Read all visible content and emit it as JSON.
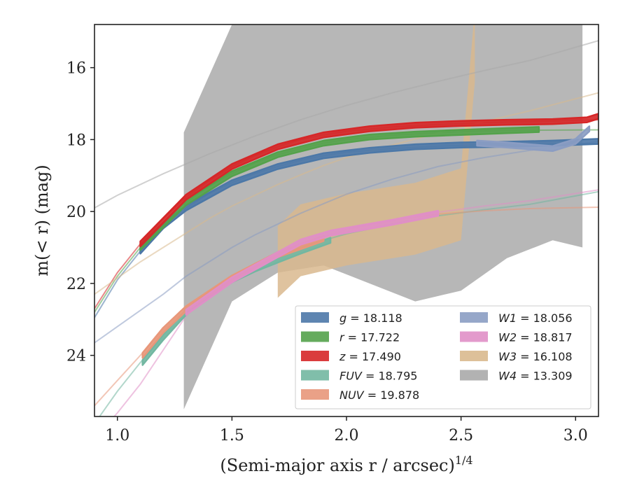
{
  "chart_data": {
    "type": "line",
    "xlabel": "(Semi-major axis r / arcsec)",
    "xlabel_exp": "1/4",
    "ylabel": "m(< r) (mag)",
    "xlim": [
      0.9,
      3.1
    ],
    "ylim": [
      25.7,
      14.8
    ],
    "y_inverted": true,
    "grid": false,
    "x_ticks": [
      "1.0",
      "1.5",
      "2.0",
      "2.5",
      "3.0"
    ],
    "y_ticks": [
      "16",
      "18",
      "20",
      "22",
      "24"
    ],
    "legend": {
      "placement": "lower-right",
      "entries": [
        {
          "band": "g",
          "value": "18.118"
        },
        {
          "band": "r",
          "value": "17.722"
        },
        {
          "band": "z",
          "value": "17.490"
        },
        {
          "band": "FUV",
          "value": "18.795"
        },
        {
          "band": "NUV",
          "value": "19.878"
        },
        {
          "band": "W1",
          "value": "18.056"
        },
        {
          "band": "W2",
          "value": "18.817"
        },
        {
          "band": "W3",
          "value": "16.108"
        },
        {
          "band": "W4",
          "value": "13.309"
        }
      ]
    },
    "series": [
      {
        "band": "g",
        "color": "#4c78a8",
        "model": [
          [
            0.9,
            22.95
          ],
          [
            1.0,
            21.9
          ],
          [
            1.1,
            21.1
          ],
          [
            1.2,
            20.4
          ],
          [
            1.3,
            19.9
          ],
          [
            1.4,
            19.5
          ],
          [
            1.5,
            19.2
          ],
          [
            1.6,
            18.95
          ],
          [
            1.7,
            18.75
          ],
          [
            1.8,
            18.58
          ],
          [
            1.9,
            18.45
          ],
          [
            2.0,
            18.35
          ],
          [
            2.2,
            18.25
          ],
          [
            2.4,
            18.18
          ],
          [
            2.6,
            18.14
          ],
          [
            2.8,
            18.12
          ],
          [
            3.1,
            18.12
          ]
        ],
        "data": [
          [
            1.1,
            21.1
          ],
          [
            1.2,
            20.4
          ],
          [
            1.3,
            19.9
          ],
          [
            1.5,
            19.2
          ],
          [
            1.7,
            18.75
          ],
          [
            1.9,
            18.45
          ],
          [
            2.1,
            18.3
          ],
          [
            2.3,
            18.2
          ],
          [
            2.5,
            18.15
          ],
          [
            2.7,
            18.13
          ],
          [
            2.9,
            18.1
          ],
          [
            3.1,
            18.05
          ]
        ]
      },
      {
        "band": "r",
        "color": "#54a24b",
        "model": [
          [
            0.9,
            22.8
          ],
          [
            1.0,
            21.8
          ],
          [
            1.1,
            21.0
          ],
          [
            1.2,
            20.3
          ],
          [
            1.3,
            19.75
          ],
          [
            1.4,
            19.3
          ],
          [
            1.5,
            18.95
          ],
          [
            1.6,
            18.65
          ],
          [
            1.7,
            18.42
          ],
          [
            1.8,
            18.25
          ],
          [
            1.9,
            18.1
          ],
          [
            2.0,
            18.0
          ],
          [
            2.2,
            17.88
          ],
          [
            2.4,
            17.81
          ],
          [
            2.6,
            17.76
          ],
          [
            2.8,
            17.74
          ],
          [
            3.1,
            17.73
          ]
        ],
        "data": [
          [
            1.1,
            21.0
          ],
          [
            1.3,
            19.75
          ],
          [
            1.5,
            18.95
          ],
          [
            1.7,
            18.42
          ],
          [
            1.9,
            18.1
          ],
          [
            2.1,
            17.93
          ],
          [
            2.3,
            17.85
          ],
          [
            2.5,
            17.8
          ],
          [
            2.7,
            17.75
          ],
          [
            2.84,
            17.72
          ]
        ]
      },
      {
        "band": "z",
        "color": "#d62728",
        "model": [
          [
            0.9,
            22.7
          ],
          [
            1.0,
            21.7
          ],
          [
            1.1,
            20.9
          ],
          [
            1.2,
            20.2
          ],
          [
            1.3,
            19.6
          ],
          [
            1.4,
            19.15
          ],
          [
            1.5,
            18.75
          ],
          [
            1.6,
            18.45
          ],
          [
            1.7,
            18.2
          ],
          [
            1.8,
            18.0
          ],
          [
            1.9,
            17.87
          ],
          [
            2.0,
            17.77
          ],
          [
            2.2,
            17.65
          ],
          [
            2.4,
            17.58
          ],
          [
            2.6,
            17.53
          ],
          [
            2.8,
            17.5
          ],
          [
            3.1,
            17.45
          ]
        ],
        "data": [
          [
            1.1,
            20.9
          ],
          [
            1.3,
            19.6
          ],
          [
            1.5,
            18.75
          ],
          [
            1.7,
            18.2
          ],
          [
            1.9,
            17.87
          ],
          [
            2.1,
            17.7
          ],
          [
            2.3,
            17.6
          ],
          [
            2.5,
            17.55
          ],
          [
            2.7,
            17.52
          ],
          [
            2.9,
            17.5
          ],
          [
            3.05,
            17.45
          ],
          [
            3.1,
            17.35
          ]
        ]
      },
      {
        "band": "FUV",
        "color": "#72b7a1",
        "model": [
          [
            0.9,
            25.9
          ],
          [
            1.0,
            25.0
          ],
          [
            1.1,
            24.2
          ],
          [
            1.2,
            23.5
          ],
          [
            1.3,
            22.8
          ],
          [
            1.4,
            22.3
          ],
          [
            1.5,
            21.9
          ],
          [
            1.6,
            21.55
          ],
          [
            1.7,
            21.25
          ],
          [
            1.8,
            21.0
          ],
          [
            1.9,
            20.8
          ],
          [
            2.0,
            20.62
          ],
          [
            2.2,
            20.35
          ],
          [
            2.4,
            20.12
          ],
          [
            2.6,
            19.95
          ],
          [
            2.8,
            19.8
          ],
          [
            3.1,
            19.45
          ]
        ],
        "data": [
          [
            1.11,
            24.2
          ],
          [
            1.2,
            23.5
          ],
          [
            1.3,
            22.8
          ],
          [
            1.4,
            22.3
          ],
          [
            1.5,
            21.9
          ],
          [
            1.6,
            21.6
          ],
          [
            1.7,
            21.35
          ],
          [
            1.8,
            21.1
          ],
          [
            1.93,
            20.8
          ]
        ]
      },
      {
        "band": "NUV",
        "color": "#e8977a",
        "model": [
          [
            0.9,
            25.4
          ],
          [
            1.0,
            24.7
          ],
          [
            1.1,
            24.0
          ],
          [
            1.2,
            23.3
          ],
          [
            1.3,
            22.7
          ],
          [
            1.4,
            22.2
          ],
          [
            1.5,
            21.8
          ],
          [
            1.6,
            21.45
          ],
          [
            1.7,
            21.15
          ],
          [
            1.8,
            20.9
          ],
          [
            1.9,
            20.7
          ],
          [
            2.0,
            20.5
          ],
          [
            2.2,
            20.25
          ],
          [
            2.4,
            20.07
          ],
          [
            2.6,
            19.98
          ],
          [
            2.8,
            19.92
          ],
          [
            3.1,
            19.88
          ]
        ],
        "data": [
          [
            1.11,
            24.0
          ],
          [
            1.2,
            23.3
          ],
          [
            1.3,
            22.7
          ],
          [
            1.5,
            21.85
          ],
          [
            1.7,
            21.2
          ],
          [
            1.9,
            20.75
          ]
        ]
      },
      {
        "band": "W1",
        "color": "#8b9dc3",
        "model": [
          [
            0.9,
            23.65
          ],
          [
            1.0,
            23.2
          ],
          [
            1.1,
            22.75
          ],
          [
            1.2,
            22.3
          ],
          [
            1.3,
            21.8
          ],
          [
            1.4,
            21.4
          ],
          [
            1.5,
            21.0
          ],
          [
            1.6,
            20.65
          ],
          [
            1.7,
            20.35
          ],
          [
            1.8,
            20.05
          ],
          [
            1.9,
            19.78
          ],
          [
            2.0,
            19.52
          ],
          [
            2.2,
            19.1
          ],
          [
            2.4,
            18.75
          ],
          [
            2.6,
            18.5
          ],
          [
            2.8,
            18.3
          ],
          [
            3.1,
            18.05
          ]
        ],
        "data": [
          [
            2.57,
            18.1
          ],
          [
            2.7,
            18.15
          ],
          [
            2.8,
            18.2
          ],
          [
            2.9,
            18.25
          ],
          [
            3.0,
            18.05
          ],
          [
            3.06,
            17.7
          ]
        ]
      },
      {
        "band": "W2",
        "color": "#e08fc7",
        "model": [
          [
            0.9,
            26.3
          ],
          [
            1.0,
            25.6
          ],
          [
            1.1,
            24.8
          ],
          [
            1.2,
            23.85
          ],
          [
            1.3,
            22.9
          ],
          [
            1.4,
            22.3
          ],
          [
            1.5,
            21.85
          ],
          [
            1.6,
            21.45
          ],
          [
            1.7,
            21.15
          ],
          [
            1.8,
            20.9
          ],
          [
            1.9,
            20.68
          ],
          [
            2.0,
            20.5
          ],
          [
            2.2,
            20.25
          ],
          [
            2.4,
            20.02
          ],
          [
            2.6,
            19.85
          ],
          [
            2.8,
            19.7
          ],
          [
            3.1,
            19.4
          ]
        ],
        "data": [
          [
            1.3,
            22.8
          ],
          [
            1.5,
            21.9
          ],
          [
            1.7,
            21.2
          ],
          [
            1.8,
            20.85
          ],
          [
            1.93,
            20.6
          ],
          [
            2.2,
            20.3
          ],
          [
            2.4,
            20.05
          ]
        ]
      },
      {
        "band": "W3",
        "color": "#d9b98e",
        "model": [
          [
            0.9,
            22.3
          ],
          [
            1.0,
            21.85
          ],
          [
            1.1,
            21.4
          ],
          [
            1.2,
            21.0
          ],
          [
            1.3,
            20.6
          ],
          [
            1.4,
            20.2
          ],
          [
            1.5,
            19.85
          ],
          [
            1.6,
            19.55
          ],
          [
            1.7,
            19.25
          ],
          [
            1.8,
            18.98
          ],
          [
            1.9,
            18.72
          ],
          [
            2.0,
            18.5
          ],
          [
            2.2,
            18.15
          ],
          [
            2.4,
            17.82
          ],
          [
            2.6,
            17.5
          ],
          [
            2.8,
            17.2
          ],
          [
            3.1,
            16.7
          ]
        ],
        "data": [
          [
            1.7,
            21.0
          ],
          [
            1.8,
            20.4
          ],
          [
            2.0,
            20.1
          ],
          [
            2.3,
            19.8
          ],
          [
            2.5,
            19.4
          ],
          [
            2.56,
            15.0
          ]
        ]
      },
      {
        "band": "W4",
        "color": "#aaaaaa",
        "model": [
          [
            0.9,
            19.9
          ],
          [
            1.0,
            19.55
          ],
          [
            1.2,
            18.95
          ],
          [
            1.4,
            18.4
          ],
          [
            1.6,
            17.9
          ],
          [
            1.8,
            17.45
          ],
          [
            2.0,
            17.05
          ],
          [
            2.2,
            16.7
          ],
          [
            2.4,
            16.38
          ],
          [
            2.6,
            16.08
          ],
          [
            2.8,
            15.8
          ],
          [
            3.1,
            15.25
          ]
        ],
        "data": [
          [
            1.29,
            21.0
          ],
          [
            1.5,
            18.0
          ],
          [
            1.7,
            17.2
          ],
          [
            1.9,
            17.0
          ],
          [
            2.1,
            17.5
          ],
          [
            2.3,
            18.0
          ],
          [
            2.5,
            17.7
          ],
          [
            2.7,
            16.8
          ],
          [
            2.9,
            16.3
          ],
          [
            3.03,
            16.5
          ]
        ]
      }
    ]
  }
}
